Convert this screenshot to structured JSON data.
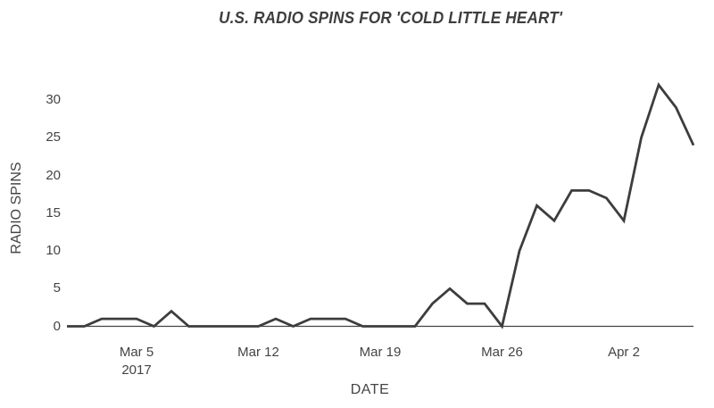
{
  "title": "U.S. RADIO SPINS FOR 'COLD LITTLE HEART'",
  "chart_data": {
    "type": "line",
    "title": "U.S. RADIO SPINS FOR 'COLD LITTLE HEART'",
    "xlabel": "DATE",
    "ylabel": "RADIO SPINS",
    "year_label": "2017",
    "x": [
      "Mar 1",
      "Mar 2",
      "Mar 3",
      "Mar 4",
      "Mar 5",
      "Mar 6",
      "Mar 7",
      "Mar 8",
      "Mar 9",
      "Mar 10",
      "Mar 11",
      "Mar 12",
      "Mar 13",
      "Mar 14",
      "Mar 15",
      "Mar 16",
      "Mar 17",
      "Mar 18",
      "Mar 19",
      "Mar 20",
      "Mar 21",
      "Mar 22",
      "Mar 23",
      "Mar 24",
      "Mar 25",
      "Mar 26",
      "Mar 27",
      "Mar 28",
      "Mar 29",
      "Mar 30",
      "Mar 31",
      "Apr 1",
      "Apr 2",
      "Apr 3",
      "Apr 4",
      "Apr 5",
      "Apr 6"
    ],
    "series": [
      {
        "name": "U.S. radio spins",
        "values": [
          0,
          0,
          1,
          1,
          1,
          0,
          2,
          0,
          0,
          0,
          0,
          0,
          1,
          0,
          1,
          1,
          1,
          0,
          0,
          0,
          0,
          3,
          5,
          3,
          3,
          0,
          10,
          16,
          14,
          18,
          18,
          17,
          14,
          25,
          32,
          29,
          24
        ]
      }
    ],
    "x_ticks": [
      {
        "index": 4,
        "label": "Mar 5",
        "sublabel": "2017"
      },
      {
        "index": 11,
        "label": "Mar 12"
      },
      {
        "index": 18,
        "label": "Mar 19"
      },
      {
        "index": 25,
        "label": "Mar 26"
      },
      {
        "index": 32,
        "label": "Apr 2"
      }
    ],
    "y_ticks": [
      0,
      5,
      10,
      15,
      20,
      25,
      30
    ],
    "ylim": [
      0,
      33.5
    ],
    "grid": false,
    "legend_position": "none",
    "line_color": "#3d3d3d",
    "axis_color": "#444444"
  }
}
